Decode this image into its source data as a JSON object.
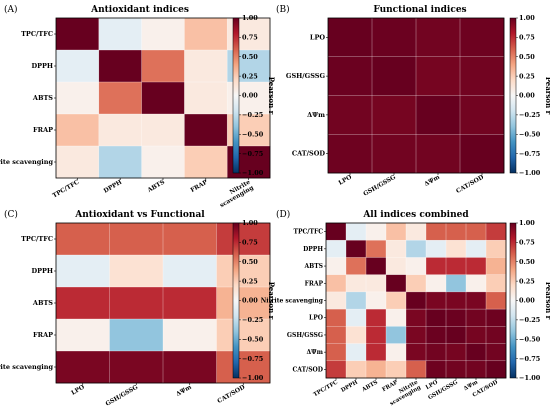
{
  "figure": {
    "colorbar": {
      "label": "Pearson r",
      "ticks": [
        "1.00",
        "0.75",
        "0.50",
        "0.25",
        "0.00",
        "−0.25",
        "−0.50",
        "−0.75",
        "−1.00"
      ],
      "range": [
        -1,
        1
      ],
      "colormap": [
        "#053061",
        "#2166ac",
        "#4393c3",
        "#92c5de",
        "#d1e5f0",
        "#f7f7f7",
        "#fddbc7",
        "#f4a582",
        "#d6604d",
        "#b2182b",
        "#67001f"
      ]
    }
  },
  "chart_data": [
    {
      "panel": "(A)",
      "title": "Antioxidant indices",
      "type": "heatmap",
      "rows": [
        "TPC/TFC",
        "DPPH",
        "ABTS",
        "FRAP",
        "Nitrite scavenging"
      ],
      "cols": [
        "TPC/TFC",
        "DPPH",
        "ABTS",
        "FRAP",
        "Nitrite scavenging"
      ],
      "values": [
        [
          1.0,
          -0.1,
          0.05,
          0.3,
          0.1
        ],
        [
          -0.1,
          1.0,
          0.55,
          0.1,
          -0.3
        ],
        [
          0.05,
          0.55,
          1.0,
          0.1,
          0.05
        ],
        [
          0.3,
          0.1,
          0.1,
          1.0,
          0.25
        ],
        [
          0.1,
          -0.3,
          0.05,
          0.25,
          1.0
        ]
      ]
    },
    {
      "panel": "(B)",
      "title": "Functional indices",
      "type": "heatmap",
      "rows": [
        "LPO",
        "GSH/GSSG",
        "ΔΨm",
        "CAT/SOD"
      ],
      "cols": [
        "LPO",
        "GSH/GSSG",
        "ΔΨm",
        "CAT/SOD"
      ],
      "values": [
        [
          1.0,
          0.99,
          0.97,
          0.98
        ],
        [
          0.99,
          1.0,
          0.96,
          0.97
        ],
        [
          0.97,
          0.96,
          1.0,
          0.97
        ],
        [
          0.98,
          0.97,
          0.97,
          1.0
        ]
      ]
    },
    {
      "panel": "(C)",
      "title": "Antioxidant vs Functional",
      "type": "heatmap",
      "rows": [
        "TPC/TFC",
        "DPPH",
        "ABTS",
        "FRAP",
        "Nitrite scavenging"
      ],
      "cols": [
        "LPO",
        "GSH/GSSG",
        "ΔΨm",
        "CAT/SOD"
      ],
      "values": [
        [
          0.6,
          0.6,
          0.6,
          0.7
        ],
        [
          -0.1,
          0.15,
          -0.1,
          0.25
        ],
        [
          0.75,
          0.75,
          0.75,
          0.35
        ],
        [
          0.05,
          -0.4,
          0.05,
          0.25
        ],
        [
          0.95,
          0.95,
          0.95,
          0.6
        ]
      ]
    },
    {
      "panel": "(D)",
      "title": "All indices combined",
      "type": "heatmap",
      "rows": [
        "TPC/TFC",
        "DPPH",
        "ABTS",
        "FRAP",
        "Nitrite scavenging",
        "LPO",
        "GSH/GSSG",
        "ΔΨm",
        "CAT/SOD"
      ],
      "cols": [
        "TPC/TFC",
        "DPPH",
        "ABTS",
        "FRAP",
        "Nitrite scavenging",
        "LPO",
        "GSH/GSSG",
        "ΔΨm",
        "CAT/SOD"
      ],
      "values": [
        [
          1.0,
          -0.1,
          0.05,
          0.3,
          0.1,
          0.6,
          0.6,
          0.6,
          0.7
        ],
        [
          -0.1,
          1.0,
          0.55,
          0.1,
          -0.3,
          -0.1,
          0.15,
          -0.1,
          0.25
        ],
        [
          0.05,
          0.55,
          1.0,
          0.1,
          0.05,
          0.75,
          0.75,
          0.75,
          0.35
        ],
        [
          0.3,
          0.1,
          0.1,
          1.0,
          0.25,
          0.05,
          -0.4,
          0.05,
          0.25
        ],
        [
          0.1,
          -0.3,
          0.05,
          0.25,
          1.0,
          0.95,
          0.95,
          0.95,
          0.6
        ],
        [
          0.6,
          -0.1,
          0.75,
          0.05,
          0.95,
          1.0,
          0.99,
          0.97,
          0.98
        ],
        [
          0.6,
          0.15,
          0.75,
          -0.4,
          0.95,
          0.99,
          1.0,
          0.96,
          0.97
        ],
        [
          0.6,
          -0.1,
          0.75,
          0.05,
          0.95,
          0.97,
          0.96,
          1.0,
          0.97
        ],
        [
          0.7,
          0.25,
          0.35,
          0.25,
          0.6,
          0.98,
          0.97,
          0.97,
          1.0
        ]
      ]
    }
  ]
}
